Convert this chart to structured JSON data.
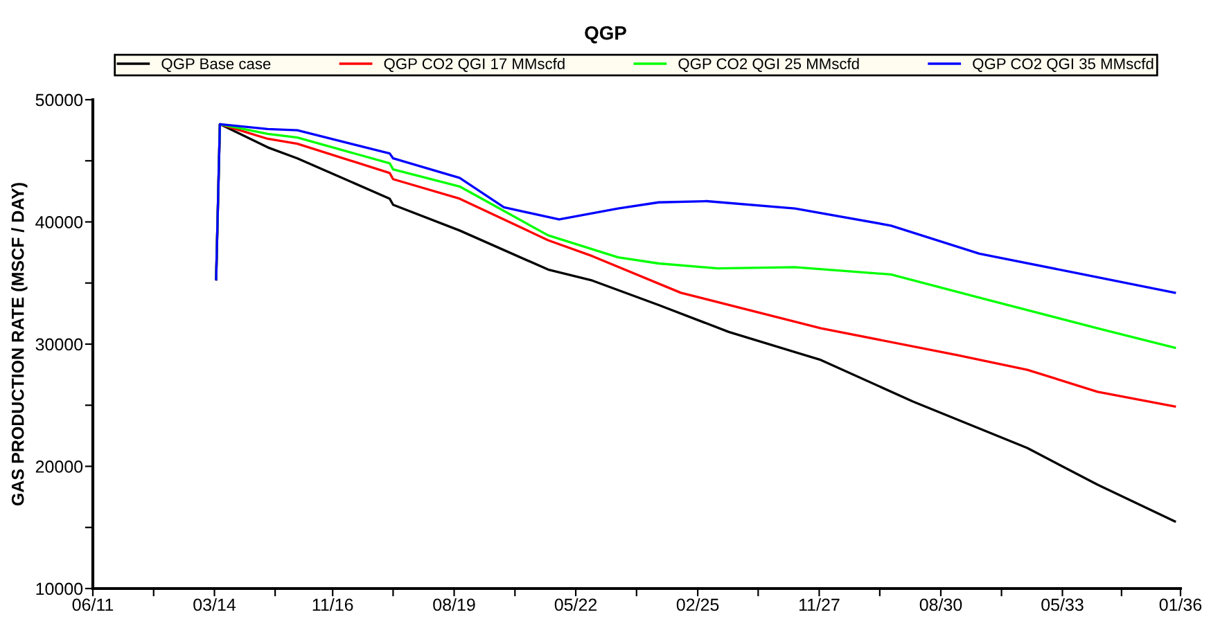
{
  "chart_data": {
    "type": "line",
    "title": "QGP",
    "ylabel": "GAS PRODUCTION RATE (MSCF / DAY)",
    "xlim": [
      "2011-06-01",
      "2036-01-01"
    ],
    "ylim": [
      10000,
      50000
    ],
    "xticks": [
      {
        "value": "2011-06-01",
        "label": "06/11"
      },
      {
        "value": "2012-10-15",
        "label": null
      },
      {
        "value": "2014-03-01",
        "label": "03/14"
      },
      {
        "value": "2015-07-15",
        "label": null
      },
      {
        "value": "2016-11-01",
        "label": "11/16"
      },
      {
        "value": "2018-03-15",
        "label": null
      },
      {
        "value": "2019-08-01",
        "label": "08/19"
      },
      {
        "value": "2020-12-15",
        "label": null
      },
      {
        "value": "2022-05-01",
        "label": "05/22"
      },
      {
        "value": "2023-09-15",
        "label": null
      },
      {
        "value": "2025-02-01",
        "label": "02/25"
      },
      {
        "value": "2026-06-15",
        "label": null
      },
      {
        "value": "2027-11-01",
        "label": "11/27"
      },
      {
        "value": "2029-03-15",
        "label": null
      },
      {
        "value": "2030-08-01",
        "label": "08/30"
      },
      {
        "value": "2031-12-15",
        "label": null
      },
      {
        "value": "2033-05-01",
        "label": "05/33"
      },
      {
        "value": "2034-09-01",
        "label": null
      },
      {
        "value": "2036-01-01",
        "label": "01/36"
      }
    ],
    "yticks": [
      10000,
      {
        "value": 15000,
        "label": null
      },
      20000,
      {
        "value": 25000,
        "label": null
      },
      30000,
      {
        "value": 35000,
        "label": null
      },
      40000,
      {
        "value": 45000,
        "label": null
      },
      50000
    ],
    "legend": "top",
    "grid": false,
    "marker": "none",
    "line_style": "solid",
    "series": [
      {
        "name": "QGP Base case",
        "color": "#000000",
        "x": [
          "2014-03",
          "2014-04",
          "2015-05",
          "2016-01",
          "2018-02",
          "2018-03",
          "2019-09",
          "2021-09",
          "2022-09",
          "2024-03",
          "2025-10",
          "2027-11",
          "2029-12",
          "2032-07",
          "2034-02",
          "2035-11"
        ],
        "values": [
          35300,
          48000,
          46100,
          45200,
          41900,
          41400,
          39300,
          36100,
          35200,
          33200,
          31000,
          28700,
          25300,
          21500,
          18500,
          15500
        ]
      },
      {
        "name": "QGP CO2 QGI 17 MMscfd",
        "color": "#ff0000",
        "x": [
          "2014-03",
          "2014-04",
          "2015-05",
          "2016-01",
          "2018-02",
          "2018-03",
          "2019-09",
          "2021-09",
          "2022-09",
          "2024-09",
          "2027-11",
          "2030-12",
          "2032-07",
          "2034-02",
          "2035-11"
        ],
        "values": [
          35300,
          48000,
          46800,
          46400,
          44000,
          43500,
          41900,
          38500,
          37200,
          34200,
          31300,
          29100,
          27900,
          26100,
          24900
        ]
      },
      {
        "name": "QGP CO2 QGI 25 MMscfd",
        "color": "#00ff00",
        "x": [
          "2014-03",
          "2014-04",
          "2015-05",
          "2016-01",
          "2018-02",
          "2018-03",
          "2019-09",
          "2021-09",
          "2023-04",
          "2024-03",
          "2025-07",
          "2027-04",
          "2029-06",
          "2031-06",
          "2034-02",
          "2035-11"
        ],
        "values": [
          35300,
          48000,
          47200,
          46900,
          44800,
          44300,
          42900,
          38900,
          37100,
          36600,
          36200,
          36300,
          35700,
          33800,
          31300,
          29700
        ]
      },
      {
        "name": "QGP CO2 QGI 35 MMscfd",
        "color": "#0000ff",
        "x": [
          "2014-03",
          "2014-04",
          "2015-05",
          "2016-01",
          "2018-02",
          "2018-03",
          "2019-09",
          "2020-09",
          "2021-12",
          "2023-04",
          "2024-03",
          "2025-04",
          "2027-04",
          "2029-06",
          "2031-06",
          "2033-07",
          "2035-11"
        ],
        "values": [
          35300,
          48000,
          47600,
          47500,
          45600,
          45200,
          43600,
          41200,
          40200,
          41100,
          41600,
          41700,
          41100,
          39700,
          37400,
          35900,
          34200
        ]
      }
    ]
  }
}
